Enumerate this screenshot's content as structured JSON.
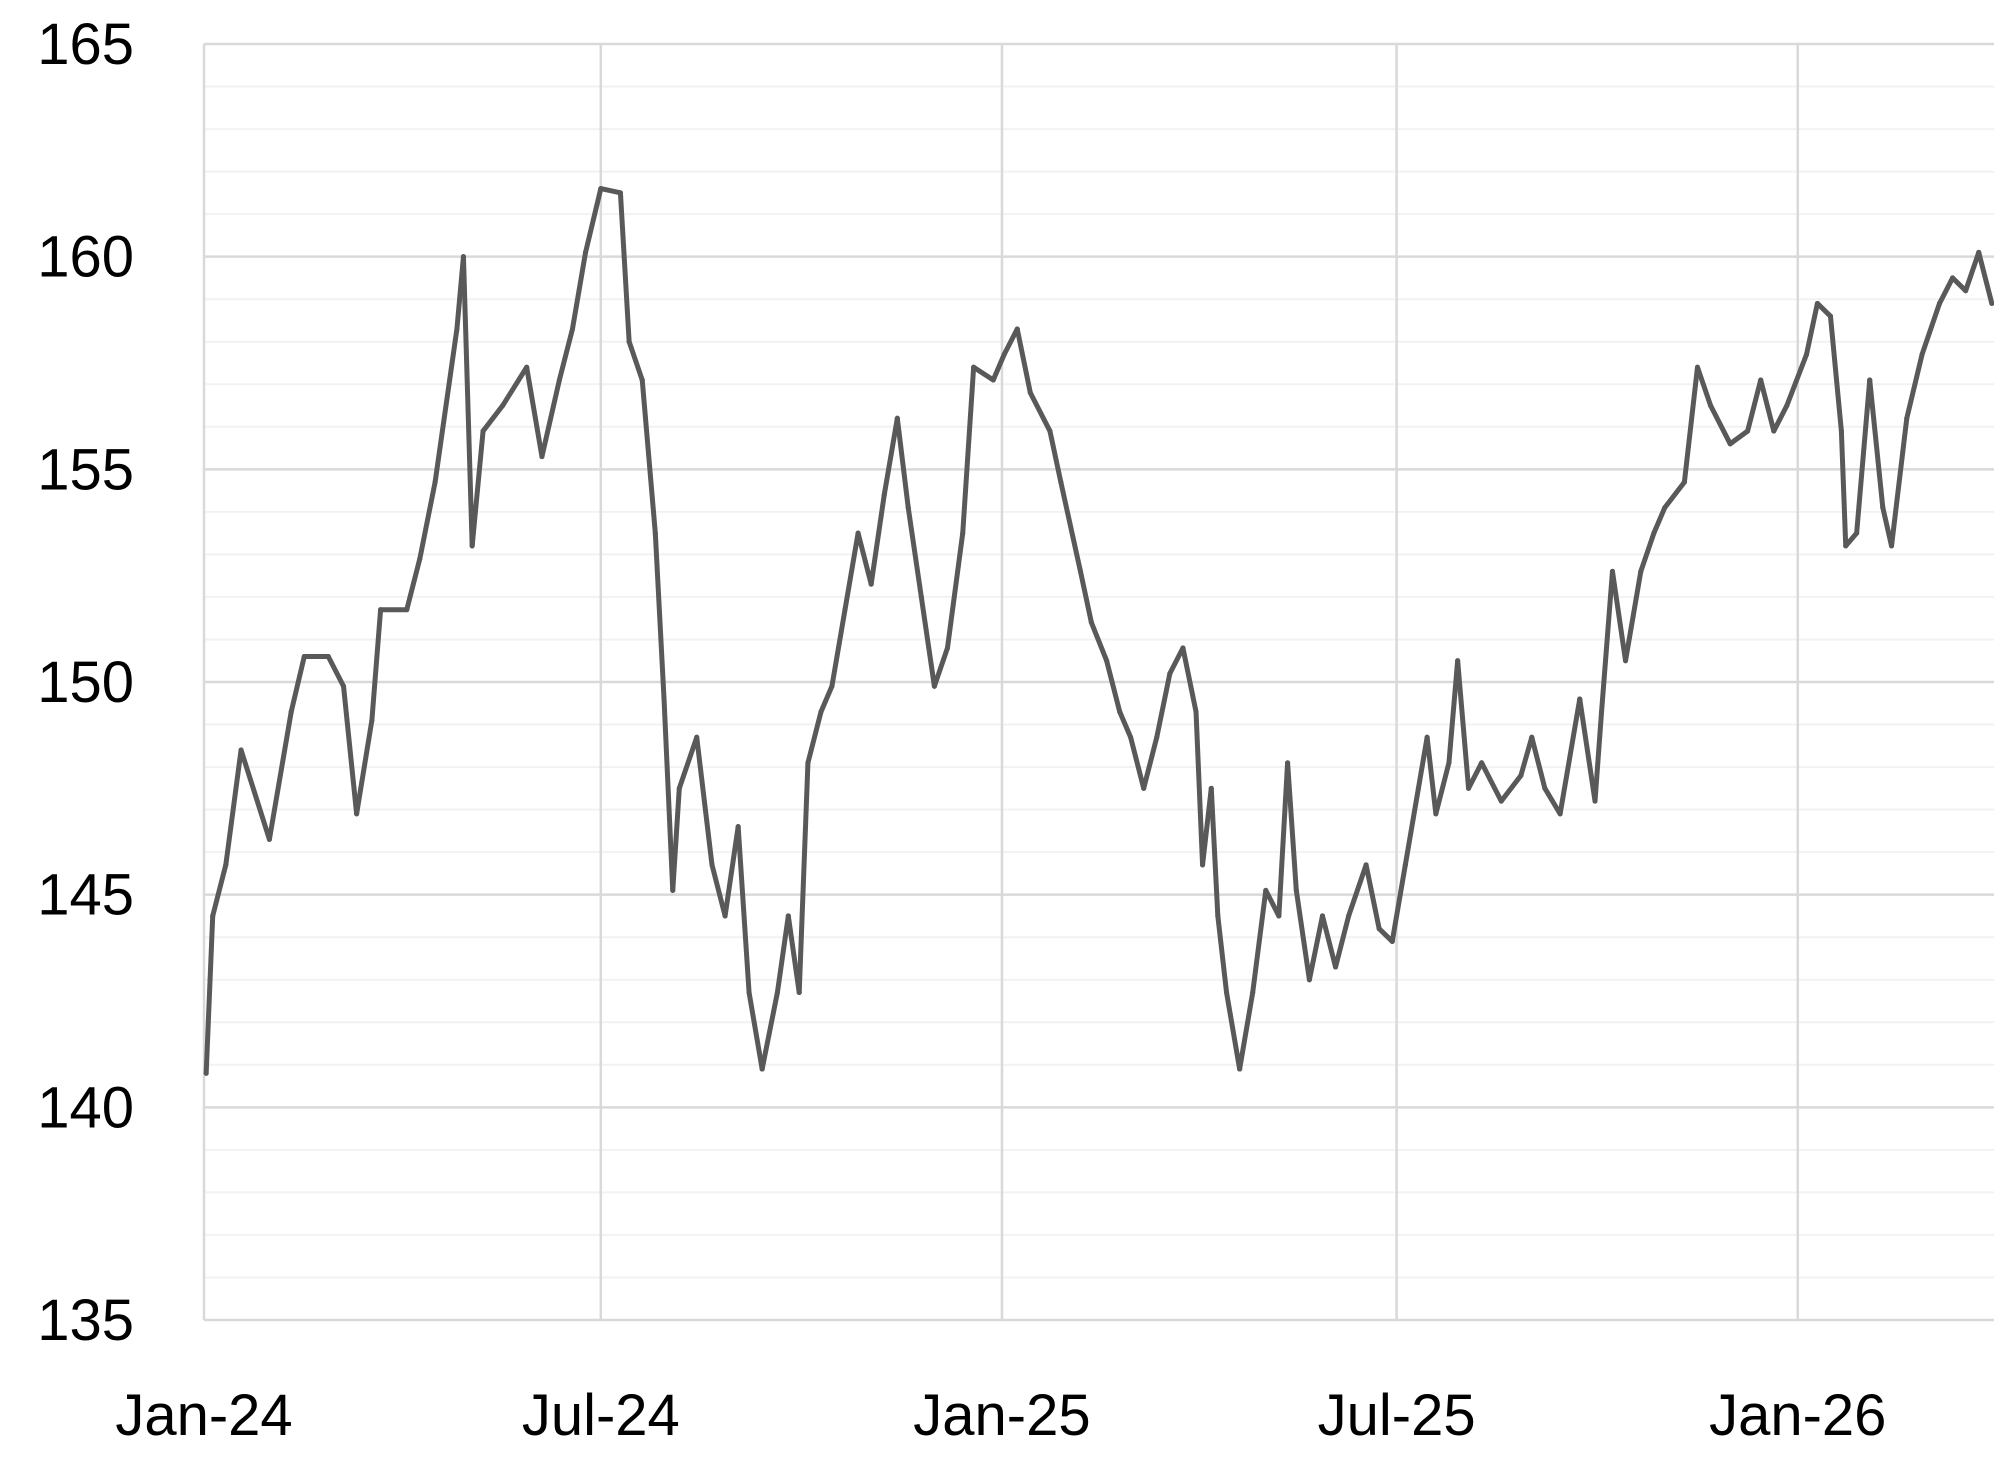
{
  "chart_data": {
    "type": "line",
    "title": "",
    "xlabel": "",
    "ylabel": "",
    "xlim": [
      "2024-01-01",
      "2026-04-01"
    ],
    "ylim": [
      135,
      165
    ],
    "y_ticks": [
      135,
      140,
      145,
      150,
      155,
      160,
      165
    ],
    "y_minor_step": 1,
    "x_ticks": [
      {
        "date": "2024-01-01",
        "label": "Jan-24"
      },
      {
        "date": "2024-07-01",
        "label": "Jul-24"
      },
      {
        "date": "2025-01-01",
        "label": "Jan-25"
      },
      {
        "date": "2025-07-01",
        "label": "Jul-25"
      },
      {
        "date": "2026-01-01",
        "label": "Jan-26"
      }
    ],
    "grid": true,
    "colors": {
      "series": "#595959",
      "major_grid": "#d9d9d9",
      "minor_grid": "#f2f2f2"
    },
    "series": [
      {
        "points": [
          [
            "2024-01-02",
            140.8
          ],
          [
            "2024-01-05",
            144.5
          ],
          [
            "2024-01-11",
            145.7
          ],
          [
            "2024-01-18",
            148.4
          ],
          [
            "2024-01-31",
            146.3
          ],
          [
            "2024-02-10",
            149.3
          ],
          [
            "2024-02-16",
            150.6
          ],
          [
            "2024-02-27",
            150.6
          ],
          [
            "2024-03-05",
            149.9
          ],
          [
            "2024-03-11",
            146.9
          ],
          [
            "2024-03-18",
            149.1
          ],
          [
            "2024-03-22",
            151.7
          ],
          [
            "2024-04-03",
            151.7
          ],
          [
            "2024-04-09",
            152.9
          ],
          [
            "2024-04-16",
            154.7
          ],
          [
            "2024-04-26",
            158.3
          ],
          [
            "2024-04-29",
            160.0
          ],
          [
            "2024-05-03",
            153.2
          ],
          [
            "2024-05-08",
            155.9
          ],
          [
            "2024-05-17",
            156.5
          ],
          [
            "2024-05-28",
            157.4
          ],
          [
            "2024-06-04",
            155.3
          ],
          [
            "2024-06-12",
            157.1
          ],
          [
            "2024-06-18",
            158.3
          ],
          [
            "2024-06-24",
            160.1
          ],
          [
            "2024-07-01",
            161.6
          ],
          [
            "2024-07-10",
            161.5
          ],
          [
            "2024-07-14",
            158.0
          ],
          [
            "2024-07-20",
            157.1
          ],
          [
            "2024-07-26",
            153.5
          ],
          [
            "2024-07-30",
            149.6
          ],
          [
            "2024-08-03",
            145.1
          ],
          [
            "2024-08-06",
            147.5
          ],
          [
            "2024-08-14",
            148.7
          ],
          [
            "2024-08-21",
            145.7
          ],
          [
            "2024-08-27",
            144.5
          ],
          [
            "2024-09-02",
            146.6
          ],
          [
            "2024-09-07",
            142.7
          ],
          [
            "2024-09-13",
            140.9
          ],
          [
            "2024-09-20",
            142.7
          ],
          [
            "2024-09-25",
            144.5
          ],
          [
            "2024-09-30",
            142.7
          ],
          [
            "2024-10-04",
            148.1
          ],
          [
            "2024-10-10",
            149.3
          ],
          [
            "2024-10-15",
            149.9
          ],
          [
            "2024-10-21",
            151.7
          ],
          [
            "2024-10-27",
            153.5
          ],
          [
            "2024-11-02",
            152.3
          ],
          [
            "2024-11-08",
            154.4
          ],
          [
            "2024-11-14",
            156.2
          ],
          [
            "2024-11-19",
            154.1
          ],
          [
            "2024-11-25",
            152.0
          ],
          [
            "2024-12-01",
            149.9
          ],
          [
            "2024-12-07",
            150.8
          ],
          [
            "2024-12-14",
            153.5
          ],
          [
            "2024-12-19",
            157.4
          ],
          [
            "2024-12-28",
            157.1
          ],
          [
            "2025-01-02",
            157.7
          ],
          [
            "2025-01-08",
            158.3
          ],
          [
            "2025-01-14",
            156.8
          ],
          [
            "2025-01-23",
            155.9
          ],
          [
            "2025-01-28",
            154.7
          ],
          [
            "2025-02-06",
            152.6
          ],
          [
            "2025-02-11",
            151.4
          ],
          [
            "2025-02-18",
            150.5
          ],
          [
            "2025-02-24",
            149.3
          ],
          [
            "2025-03-01",
            148.7
          ],
          [
            "2025-03-07",
            147.5
          ],
          [
            "2025-03-13",
            148.7
          ],
          [
            "2025-03-19",
            150.2
          ],
          [
            "2025-03-25",
            150.8
          ],
          [
            "2025-03-31",
            149.3
          ],
          [
            "2025-04-03",
            145.7
          ],
          [
            "2025-04-07",
            147.5
          ],
          [
            "2025-04-10",
            144.5
          ],
          [
            "2025-04-14",
            142.7
          ],
          [
            "2025-04-20",
            140.9
          ],
          [
            "2025-04-26",
            142.7
          ],
          [
            "2025-05-02",
            145.1
          ],
          [
            "2025-05-08",
            144.5
          ],
          [
            "2025-05-12",
            148.1
          ],
          [
            "2025-05-16",
            145.1
          ],
          [
            "2025-05-22",
            143.0
          ],
          [
            "2025-05-28",
            144.5
          ],
          [
            "2025-06-03",
            143.3
          ],
          [
            "2025-06-09",
            144.5
          ],
          [
            "2025-06-17",
            145.7
          ],
          [
            "2025-06-23",
            144.2
          ],
          [
            "2025-06-29",
            143.9
          ],
          [
            "2025-07-05",
            145.7
          ],
          [
            "2025-07-11",
            147.5
          ],
          [
            "2025-07-15",
            148.7
          ],
          [
            "2025-07-19",
            146.9
          ],
          [
            "2025-07-25",
            148.1
          ],
          [
            "2025-07-29",
            150.5
          ],
          [
            "2025-08-03",
            147.5
          ],
          [
            "2025-08-09",
            148.1
          ],
          [
            "2025-08-18",
            147.2
          ],
          [
            "2025-08-27",
            147.8
          ],
          [
            "2025-09-01",
            148.7
          ],
          [
            "2025-09-07",
            147.5
          ],
          [
            "2025-09-14",
            146.9
          ],
          [
            "2025-09-23",
            149.6
          ],
          [
            "2025-09-30",
            147.2
          ],
          [
            "2025-10-03",
            149.3
          ],
          [
            "2025-10-08",
            152.6
          ],
          [
            "2025-10-14",
            150.5
          ],
          [
            "2025-10-21",
            152.6
          ],
          [
            "2025-10-27",
            153.5
          ],
          [
            "2025-11-01",
            154.1
          ],
          [
            "2025-11-10",
            154.7
          ],
          [
            "2025-11-16",
            157.4
          ],
          [
            "2025-11-22",
            156.5
          ],
          [
            "2025-12-01",
            155.6
          ],
          [
            "2025-12-09",
            155.9
          ],
          [
            "2025-12-15",
            157.1
          ],
          [
            "2025-12-21",
            155.9
          ],
          [
            "2025-12-27",
            156.5
          ],
          [
            "2026-01-05",
            157.7
          ],
          [
            "2026-01-10",
            158.9
          ],
          [
            "2026-01-16",
            158.6
          ],
          [
            "2026-01-21",
            155.9
          ],
          [
            "2026-01-23",
            153.2
          ],
          [
            "2026-01-28",
            153.5
          ],
          [
            "2026-02-03",
            157.1
          ],
          [
            "2026-02-09",
            154.1
          ],
          [
            "2026-02-13",
            153.2
          ],
          [
            "2026-02-20",
            156.2
          ],
          [
            "2026-02-27",
            157.7
          ],
          [
            "2026-03-07",
            158.9
          ],
          [
            "2026-03-13",
            159.5
          ],
          [
            "2026-03-19",
            159.2
          ],
          [
            "2026-03-25",
            160.1
          ],
          [
            "2026-03-31",
            158.9
          ]
        ]
      }
    ]
  }
}
